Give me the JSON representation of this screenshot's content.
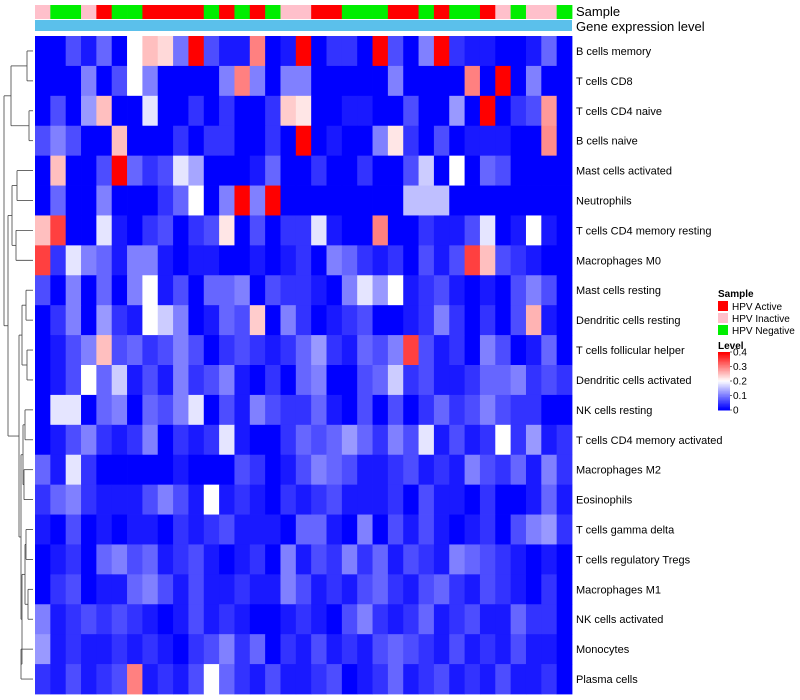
{
  "chart_data": {
    "type": "heatmap",
    "rows": [
      "B cells memory",
      "T cells CD8",
      "T cells CD4 naive",
      "B cells naive",
      "Mast cells activated",
      "Neutrophils",
      "T cells CD4 memory resting",
      "Macrophages M0",
      "Mast cells resting",
      "Dendritic cells resting",
      "T cells follicular helper",
      "Dendritic cells activated",
      "NK cells resting",
      "T cells CD4 memory activated",
      "Macrophages M2",
      "Eosinophils",
      "T cells gamma delta",
      "T cells regulatory  Tregs",
      "Macrophages M1",
      "NK cells activated",
      "Monocytes",
      "Plasma cells"
    ],
    "sample_groups": [
      "I",
      "N",
      "N",
      "I",
      "A",
      "N",
      "N",
      "A",
      "A",
      "A",
      "A",
      "N",
      "A",
      "N",
      "A",
      "N",
      "I",
      "I",
      "A",
      "A",
      "N",
      "N",
      "N",
      "A",
      "A",
      "N",
      "A",
      "N",
      "N",
      "A",
      "I",
      "N",
      "I",
      "I",
      "N"
    ],
    "annotations": {
      "top": [
        "Sample",
        "Gene expression level"
      ],
      "sample_legend": {
        "title": "Sample",
        "entries": [
          {
            "label": "HPV Active",
            "color": "#ff0000"
          },
          {
            "label": "HPV Inactive",
            "color": "#ffc0cb"
          },
          {
            "label": "HPV Negative",
            "color": "#00ee00"
          }
        ]
      },
      "gene_expression_color": "#5bc0eb"
    },
    "color_scale": {
      "title": "Level",
      "min": 0,
      "max": 0.4,
      "ticks": [
        0.4,
        0.3,
        0.2,
        0.1,
        0
      ],
      "tick_labels": [
        "0.4",
        "0.3",
        "0.2",
        "0.1",
        "0"
      ],
      "colors": [
        "#0000ff",
        "#ffffff",
        "#ff0000"
      ],
      "mid": 0.2
    },
    "values": [
      [
        0,
        0,
        0.06,
        0.02,
        0.08,
        0,
        0.2,
        0.25,
        0.23,
        0.09,
        0.4,
        0.06,
        0.02,
        0.02,
        0.3,
        0,
        0.02,
        0.4,
        0,
        0.04,
        0.04,
        0,
        0.4,
        0.06,
        0,
        0.1,
        0.4,
        0.04,
        0.02,
        0.02,
        0,
        0,
        0.02,
        0.08,
        0
      ],
      [
        0,
        0,
        0,
        0.1,
        0,
        0.06,
        0.2,
        0.1,
        0,
        0,
        0,
        0,
        0.1,
        0.3,
        0.1,
        0,
        0.1,
        0.1,
        0,
        0,
        0,
        0,
        0,
        0.1,
        0,
        0,
        0,
        0,
        0.3,
        0,
        0.4,
        0,
        0.1,
        0,
        0
      ],
      [
        0,
        0.06,
        0,
        0.12,
        0.25,
        0,
        0,
        0.18,
        0,
        0,
        0.04,
        0,
        0.04,
        0,
        0,
        0.04,
        0.24,
        0.22,
        0,
        0,
        0.02,
        0.02,
        0,
        0,
        0.06,
        0,
        0,
        0.12,
        0,
        0.4,
        0,
        0.04,
        0.06,
        0.28,
        0
      ],
      [
        0.06,
        0.1,
        0.06,
        0,
        0,
        0.25,
        0,
        0,
        0,
        0.04,
        0,
        0.04,
        0.04,
        0,
        0,
        0.04,
        0,
        0.4,
        0,
        0.02,
        0,
        0,
        0.1,
        0.22,
        0.04,
        0,
        0.06,
        0,
        0.02,
        0.02,
        0.02,
        0,
        0,
        0.29,
        0
      ],
      [
        0,
        0.25,
        0,
        0,
        0.06,
        0.4,
        0.08,
        0.04,
        0.06,
        0.18,
        0.13,
        0,
        0,
        0,
        0.02,
        0.08,
        0,
        0,
        0.04,
        0,
        0,
        0.04,
        0,
        0,
        0.06,
        0.16,
        0,
        0.2,
        0,
        0.08,
        0.06,
        0,
        0,
        0,
        0
      ],
      [
        0,
        0.08,
        0,
        0,
        0.1,
        0,
        0,
        0,
        0.04,
        0.08,
        0.2,
        0,
        0.1,
        0.4,
        0.1,
        0.4,
        0,
        0,
        0,
        0,
        0,
        0,
        0,
        0,
        0.15,
        0.15,
        0.15,
        0,
        0,
        0,
        0,
        0,
        0,
        0,
        0
      ],
      [
        0.25,
        0.35,
        0,
        0,
        0.18,
        0.02,
        0,
        0.04,
        0.06,
        0,
        0.04,
        0.06,
        0.22,
        0,
        0.06,
        0,
        0.04,
        0.04,
        0.18,
        0.02,
        0,
        0,
        0.3,
        0,
        0,
        0.04,
        0.02,
        0.02,
        0.06,
        0.18,
        0,
        0.02,
        0.2,
        0.02,
        0
      ],
      [
        0.35,
        0.04,
        0.18,
        0.1,
        0.08,
        0.02,
        0.1,
        0.1,
        0.02,
        0,
        0.02,
        0.02,
        0,
        0,
        0.02,
        0,
        0.02,
        0.04,
        0,
        0.1,
        0.08,
        0.04,
        0.02,
        0.04,
        0,
        0.06,
        0.02,
        0.06,
        0.35,
        0.25,
        0.06,
        0.04,
        0.02,
        0,
        0
      ],
      [
        0.06,
        0,
        0.1,
        0,
        0.08,
        0,
        0.1,
        0.2,
        0.02,
        0.06,
        0,
        0.08,
        0.08,
        0.1,
        0,
        0.06,
        0.04,
        0.04,
        0.02,
        0,
        0.1,
        0.18,
        0.12,
        0.2,
        0.02,
        0.04,
        0.06,
        0.02,
        0,
        0.02,
        0,
        0.06,
        0.1,
        0.06,
        0
      ],
      [
        0,
        0.04,
        0.1,
        0,
        0.12,
        0.04,
        0.02,
        0.2,
        0.16,
        0.1,
        0,
        0.02,
        0.08,
        0.06,
        0.24,
        0,
        0.1,
        0.04,
        0,
        0.02,
        0.04,
        0.06,
        0,
        0,
        0.02,
        0.04,
        0.1,
        0.04,
        0,
        0.04,
        0,
        0.06,
        0.26,
        0.02,
        0
      ],
      [
        0,
        0.02,
        0.06,
        0.1,
        0.25,
        0.06,
        0.08,
        0.04,
        0.06,
        0.1,
        0.06,
        0,
        0.04,
        0.06,
        0.04,
        0.02,
        0.04,
        0.08,
        0.12,
        0.04,
        0.02,
        0.08,
        0.06,
        0.1,
        0.35,
        0.06,
        0.02,
        0.04,
        0,
        0.1,
        0.06,
        0,
        0.02,
        0.08,
        0
      ],
      [
        0,
        0.02,
        0.06,
        0.2,
        0.08,
        0.16,
        0.02,
        0.06,
        0.02,
        0.1,
        0.04,
        0.06,
        0.1,
        0.02,
        0,
        0.04,
        0,
        0.08,
        0.1,
        0,
        0,
        0.06,
        0.08,
        0.16,
        0.04,
        0.06,
        0.02,
        0.02,
        0.04,
        0.08,
        0.08,
        0.1,
        0.04,
        0.06,
        0.04
      ],
      [
        0,
        0.18,
        0.18,
        0,
        0.08,
        0.1,
        0,
        0.08,
        0.06,
        0.1,
        0.18,
        0,
        0.06,
        0.02,
        0.1,
        0.06,
        0.04,
        0.04,
        0.08,
        0.02,
        0,
        0.06,
        0,
        0.06,
        0,
        0.04,
        0.08,
        0.04,
        0.06,
        0.1,
        0.06,
        0.04,
        0.04,
        0,
        0
      ],
      [
        0,
        0.02,
        0.06,
        0.1,
        0.04,
        0.02,
        0.04,
        0.1,
        0,
        0.04,
        0.02,
        0.04,
        0.18,
        0.02,
        0,
        0,
        0.04,
        0.08,
        0.06,
        0.08,
        0.12,
        0.08,
        0.04,
        0.1,
        0.06,
        0.18,
        0.02,
        0.06,
        0.02,
        0.04,
        0.2,
        0.04,
        0.12,
        0.02,
        0.04
      ],
      [
        0.08,
        0.02,
        0.18,
        0.04,
        0,
        0,
        0,
        0,
        0,
        0.02,
        0,
        0,
        0,
        0.06,
        0.04,
        0,
        0.02,
        0.06,
        0.1,
        0.08,
        0.06,
        0.02,
        0.02,
        0.04,
        0.06,
        0.02,
        0.04,
        0.02,
        0.1,
        0.06,
        0.04,
        0.08,
        0.02,
        0.1,
        0.04
      ],
      [
        0.04,
        0.08,
        0.1,
        0.04,
        0.02,
        0.02,
        0.02,
        0.06,
        0.1,
        0.06,
        0.02,
        0.2,
        0.02,
        0.04,
        0.02,
        0,
        0.04,
        0.02,
        0.04,
        0.06,
        0.02,
        0.02,
        0.02,
        0.04,
        0,
        0.06,
        0.02,
        0.02,
        0,
        0.04,
        0,
        0,
        0.02,
        0.08,
        0.02
      ],
      [
        0.02,
        0,
        0.06,
        0,
        0.02,
        0,
        0.02,
        0.02,
        0,
        0.04,
        0.02,
        0.04,
        0.06,
        0.02,
        0.02,
        0.02,
        0,
        0.08,
        0.08,
        0.02,
        0,
        0.1,
        0,
        0.06,
        0.02,
        0.06,
        0.02,
        0,
        0.02,
        0.04,
        0,
        0.06,
        0.1,
        0.12,
        0.04
      ],
      [
        0,
        0.02,
        0.04,
        0,
        0.08,
        0.1,
        0.06,
        0.08,
        0.02,
        0.04,
        0.06,
        0.02,
        0,
        0.02,
        0.04,
        0,
        0.1,
        0.02,
        0.06,
        0.04,
        0.1,
        0.04,
        0.08,
        0.02,
        0.06,
        0.04,
        0.02,
        0.1,
        0.08,
        0.06,
        0.04,
        0.02,
        0,
        0.02,
        0
      ],
      [
        0,
        0.04,
        0.06,
        0,
        0.02,
        0.02,
        0.08,
        0.1,
        0.06,
        0.02,
        0.06,
        0.02,
        0.02,
        0.04,
        0.02,
        0.02,
        0.1,
        0.06,
        0.02,
        0.04,
        0.02,
        0.06,
        0.08,
        0.04,
        0.02,
        0.06,
        0.08,
        0.04,
        0.02,
        0.06,
        0.04,
        0.02,
        0,
        0.04,
        0
      ],
      [
        0.1,
        0.02,
        0.04,
        0.06,
        0.04,
        0.06,
        0.04,
        0.02,
        0,
        0.02,
        0.06,
        0.02,
        0.04,
        0.02,
        0,
        0,
        0.02,
        0.04,
        0.02,
        0,
        0.06,
        0.1,
        0.04,
        0.02,
        0.04,
        0.08,
        0.02,
        0.04,
        0.06,
        0.02,
        0.02,
        0.08,
        0.04,
        0.04,
        0
      ],
      [
        0.12,
        0.02,
        0.04,
        0.02,
        0.02,
        0.04,
        0.02,
        0.04,
        0.02,
        0,
        0.04,
        0.06,
        0.1,
        0.04,
        0.08,
        0,
        0.04,
        0.02,
        0.06,
        0.02,
        0.04,
        0.02,
        0.06,
        0.08,
        0.06,
        0.04,
        0.02,
        0.06,
        0.02,
        0.04,
        0.02,
        0.06,
        0.02,
        0.02,
        0
      ],
      [
        0.04,
        0.02,
        0.06,
        0.02,
        0.04,
        0.06,
        0.3,
        0.02,
        0.04,
        0.02,
        0.06,
        0.2,
        0.08,
        0.04,
        0.02,
        0.06,
        0.02,
        0.02,
        0.04,
        0.06,
        0,
        0.02,
        0.04,
        0.08,
        0.02,
        0.04,
        0.06,
        0.02,
        0.04,
        0.02,
        0.06,
        0.02,
        0.02,
        0.04,
        0
      ]
    ]
  }
}
